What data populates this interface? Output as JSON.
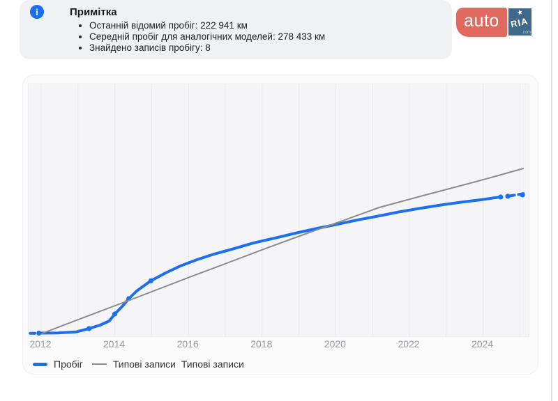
{
  "note": {
    "title": "Примітка",
    "bullets": [
      "Останній відомий пробіг: 222 941 км",
      "Середній пробіг для аналогічних моделей: 278 433 км",
      "Знайдено записів пробігу: 8"
    ]
  },
  "logo": {
    "auto": "auto",
    "ria": "RIA",
    "com": ".com",
    "star": "★"
  },
  "info_icon_glyph": "i",
  "colors": {
    "accent_blue": "#1B6FF0",
    "line_gray": "#8C8C8C",
    "note_bg": "#F0F1F3",
    "logo_red": "#E06A60",
    "logo_blue": "#40688A"
  },
  "chart_data": {
    "type": "line",
    "title": "",
    "xlabel": "",
    "ylabel": "",
    "x_ticks": [
      "2012",
      "2014",
      "2016",
      "2018",
      "2020",
      "2022",
      "2024"
    ],
    "x_gridline_years": [
      2012,
      2013,
      2014,
      2015,
      2016,
      2017,
      2018,
      2019,
      2020,
      2021,
      2022,
      2023,
      2024,
      2025
    ],
    "x_range": [
      2011.6,
      2025.6
    ],
    "y_range_km": [
      0,
      397000
    ],
    "grid": "vertical-only",
    "legend_position": "bottom-left",
    "series": [
      {
        "name": "Пробіг",
        "color": "#1B6FF0",
        "width": 4,
        "last_known_km": 222941,
        "records_found": 8,
        "lead_dash": [
          [
            2011.7,
            300
          ],
          [
            2011.83,
            300
          ]
        ],
        "curve": [
          [
            2011.94,
            600
          ],
          [
            2012.45,
            800
          ],
          [
            2012.95,
            2500
          ],
          [
            2013.3,
            7800
          ],
          [
            2013.6,
            13300
          ],
          [
            2013.85,
            20000
          ],
          [
            2014.0,
            31000
          ],
          [
            2014.2,
            43000
          ],
          [
            2014.38,
            55500
          ],
          [
            2014.6,
            68000
          ],
          [
            2014.98,
            84000
          ],
          [
            2015.4,
            97000
          ],
          [
            2015.8,
            108000
          ],
          [
            2016.25,
            118000
          ],
          [
            2016.7,
            126500
          ],
          [
            2017.2,
            134500
          ],
          [
            2017.75,
            144000
          ],
          [
            2018.35,
            152000
          ],
          [
            2018.9,
            159700
          ],
          [
            2019.5,
            167500
          ],
          [
            2020.05,
            174000
          ],
          [
            2020.6,
            181000
          ],
          [
            2021.2,
            187500
          ],
          [
            2021.75,
            194000
          ],
          [
            2022.3,
            199500
          ],
          [
            2022.9,
            205000
          ],
          [
            2023.45,
            209500
          ],
          [
            2023.95,
            213000
          ],
          [
            2024.3,
            216000
          ],
          [
            2024.48,
            217400
          ]
        ],
        "records": [
          [
            2011.94,
            600
          ],
          [
            2013.3,
            7800
          ],
          [
            2014.0,
            31000
          ],
          [
            2014.38,
            55500
          ],
          [
            2014.98,
            84000
          ],
          [
            2024.48,
            217400
          ],
          [
            2024.67,
            218600
          ],
          [
            2025.07,
            220800
          ]
        ],
        "tail_dash": [
          [
            2024.72,
            219000
          ],
          [
            2025.18,
            223600
          ]
        ]
      },
      {
        "name": "Типові записи",
        "color": "#8C8C8C",
        "width": 2,
        "average_km": 278433,
        "curve": [
          [
            2012.02,
            0
          ],
          [
            2013.0,
            22000
          ],
          [
            2014.51,
            55450
          ],
          [
            2016.0,
            89000
          ],
          [
            2016.99,
            110900
          ],
          [
            2018.1,
            135500
          ],
          [
            2019.28,
            160800
          ],
          [
            2020.3,
            182000
          ],
          [
            2021.18,
            200700
          ],
          [
            2022.51,
            221800
          ],
          [
            2023.66,
            239500
          ],
          [
            2024.42,
            251700
          ],
          [
            2025.09,
            262800
          ]
        ]
      }
    ],
    "legend": [
      {
        "label": "Пробіг",
        "swatch": "thick-blue-line"
      },
      {
        "label": "Типові записи",
        "swatch": "thin-gray-line"
      },
      {
        "label": "Типові записи",
        "swatch": "none"
      }
    ]
  }
}
